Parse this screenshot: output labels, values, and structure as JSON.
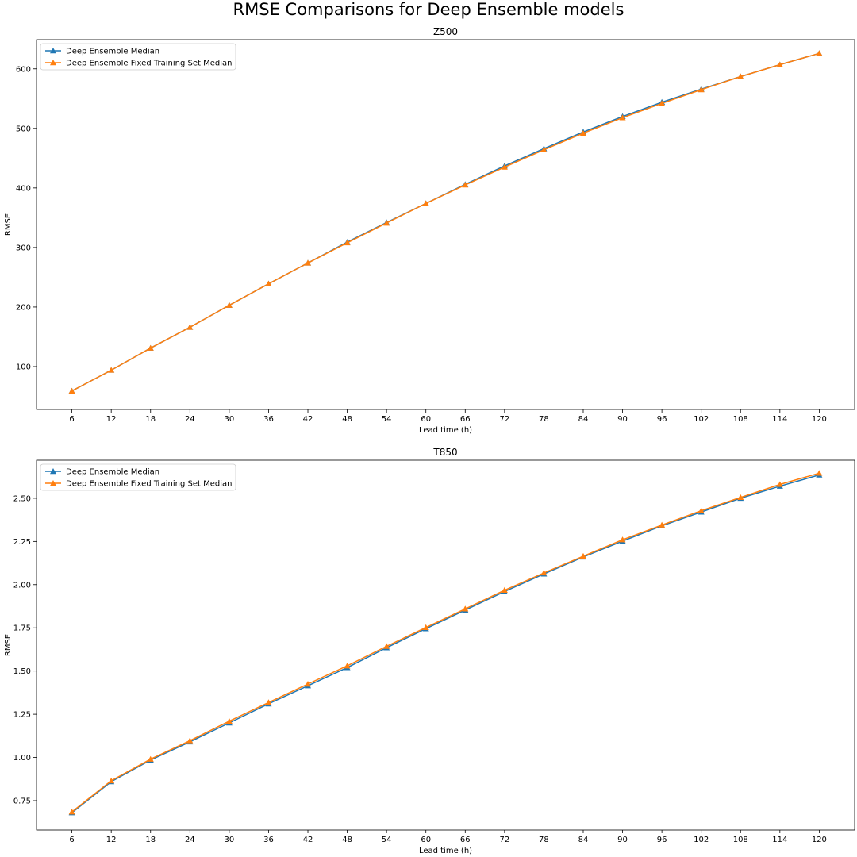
{
  "figure": {
    "title": "RMSE Comparisons for Deep Ensemble models"
  },
  "chart_data": [
    {
      "type": "line",
      "title": "Z500",
      "xlabel": "Lead time (h)",
      "ylabel": "RMSE",
      "x": [
        6,
        12,
        18,
        24,
        30,
        36,
        42,
        48,
        54,
        60,
        66,
        72,
        78,
        84,
        90,
        96,
        102,
        108,
        114,
        120
      ],
      "xticks": [
        "6",
        "12",
        "18",
        "24",
        "30",
        "36",
        "42",
        "48",
        "54",
        "60",
        "66",
        "72",
        "78",
        "84",
        "90",
        "96",
        "102",
        "108",
        "114",
        "120"
      ],
      "yticks": [
        100,
        200,
        300,
        400,
        500,
        600
      ],
      "ylim": [
        28,
        649
      ],
      "grid": false,
      "legend_position": "upper-left",
      "series": [
        {
          "name": "Deep Ensemble Median",
          "color": "#1f77b4",
          "marker": "triangle-up",
          "values": [
            59,
            94,
            131,
            166,
            203,
            239,
            274,
            309,
            342,
            374,
            406,
            437,
            466,
            494,
            520,
            544,
            566,
            587,
            607,
            626
          ]
        },
        {
          "name": "Deep Ensemble Fixed Training Set Median",
          "color": "#ff7f0e",
          "marker": "triangle-up",
          "values": [
            59,
            94,
            131,
            166,
            203,
            239,
            274,
            308,
            341,
            374,
            405,
            435,
            464,
            492,
            518,
            542,
            565,
            587,
            607,
            626
          ]
        }
      ]
    },
    {
      "type": "line",
      "title": "T850",
      "xlabel": "Lead time (h)",
      "ylabel": "RMSE",
      "x": [
        6,
        12,
        18,
        24,
        30,
        36,
        42,
        48,
        54,
        60,
        66,
        72,
        78,
        84,
        90,
        96,
        102,
        108,
        114,
        120
      ],
      "xticks": [
        "6",
        "12",
        "18",
        "24",
        "30",
        "36",
        "42",
        "48",
        "54",
        "60",
        "66",
        "72",
        "78",
        "84",
        "90",
        "96",
        "102",
        "108",
        "114",
        "120"
      ],
      "yticks": [
        "0.75",
        "1.00",
        "1.25",
        "1.50",
        "1.75",
        "2.00",
        "2.25",
        "2.50"
      ],
      "ylim": [
        0.58,
        2.72
      ],
      "grid": false,
      "legend_position": "upper-left",
      "series": [
        {
          "name": "Deep Ensemble Median",
          "color": "#1f77b4",
          "marker": "triangle-up",
          "values": [
            0.68,
            0.86,
            0.985,
            1.09,
            1.2,
            1.31,
            1.415,
            1.52,
            1.635,
            1.745,
            1.853,
            1.96,
            2.062,
            2.16,
            2.252,
            2.34,
            2.42,
            2.5,
            2.57,
            2.635
          ]
        },
        {
          "name": "Deep Ensemble Fixed Training Set Median",
          "color": "#ff7f0e",
          "marker": "triangle-up",
          "values": [
            0.685,
            0.865,
            0.99,
            1.097,
            1.21,
            1.318,
            1.425,
            1.53,
            1.643,
            1.752,
            1.86,
            1.968,
            2.068,
            2.165,
            2.26,
            2.345,
            2.428,
            2.505,
            2.58,
            2.645
          ]
        }
      ]
    }
  ]
}
